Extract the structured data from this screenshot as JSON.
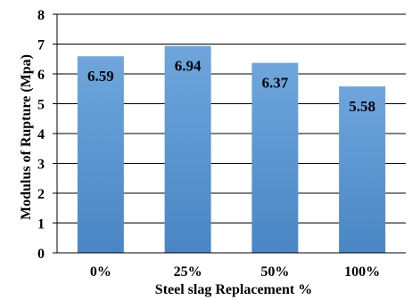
{
  "chart_data": {
    "type": "bar",
    "title": "",
    "xlabel": "Steel slag Replacement %",
    "ylabel": "Modulus of Rupture (Mpa)",
    "categories": [
      "0%",
      "25%",
      "50%",
      "100%"
    ],
    "values": [
      6.59,
      6.94,
      6.37,
      5.58
    ],
    "data_labels": [
      "6.59",
      "6.94",
      "6.37",
      "5.58"
    ],
    "ylim": [
      0,
      8
    ],
    "yticks": [
      "0",
      "1",
      "2",
      "3",
      "4",
      "5",
      "6",
      "7",
      "8"
    ],
    "grid": true,
    "legend": "none",
    "bar_color": "#5b9bd5"
  }
}
